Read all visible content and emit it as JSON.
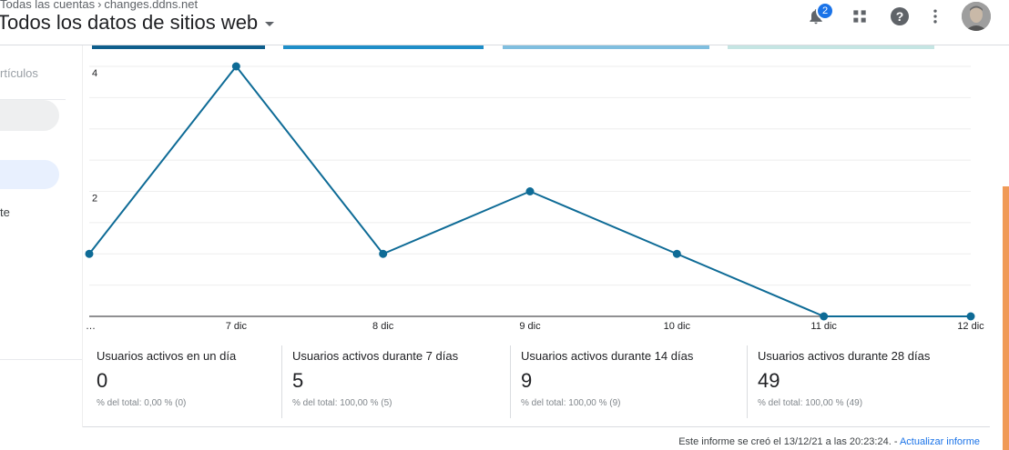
{
  "header": {
    "breadcrumb": [
      "Todas las cuentas",
      "changes.ddns.net"
    ],
    "property_title": "Todos los datos de sitios web",
    "notifications_count": "2",
    "icons": [
      "bell-icon",
      "apps-icon",
      "help-icon",
      "more-vert-icon"
    ]
  },
  "leftnav": {
    "item_articulos": "rtículos",
    "item_te": "te"
  },
  "chart_data": {
    "type": "line",
    "x": [
      "…",
      "7 dic",
      "8 dic",
      "9 dic",
      "10 dic",
      "11 dic",
      "12 dic"
    ],
    "values": [
      1,
      4,
      1,
      2,
      1,
      0,
      0
    ],
    "y_ticks": [
      "4",
      "2"
    ],
    "ylim": [
      0,
      4
    ],
    "grid": true,
    "color": "#0e6b96"
  },
  "metrics": [
    {
      "label": "Usuarios activos en un día",
      "value": "0",
      "sub": "% del total: 0,00 % (0)"
    },
    {
      "label": "Usuarios activos durante 7 días",
      "value": "5",
      "sub": "% del total: 100,00 % (5)"
    },
    {
      "label": "Usuarios activos durante 14 días",
      "value": "9",
      "sub": "% del total: 100,00 % (9)"
    },
    {
      "label": "Usuarios activos durante 28 días",
      "value": "49",
      "sub": "% del total: 100,00 % (49)"
    }
  ],
  "footer": {
    "text": "Este informe se creó el 13/12/21 a las 20:23:24. -",
    "link": "Actualizar informe"
  }
}
